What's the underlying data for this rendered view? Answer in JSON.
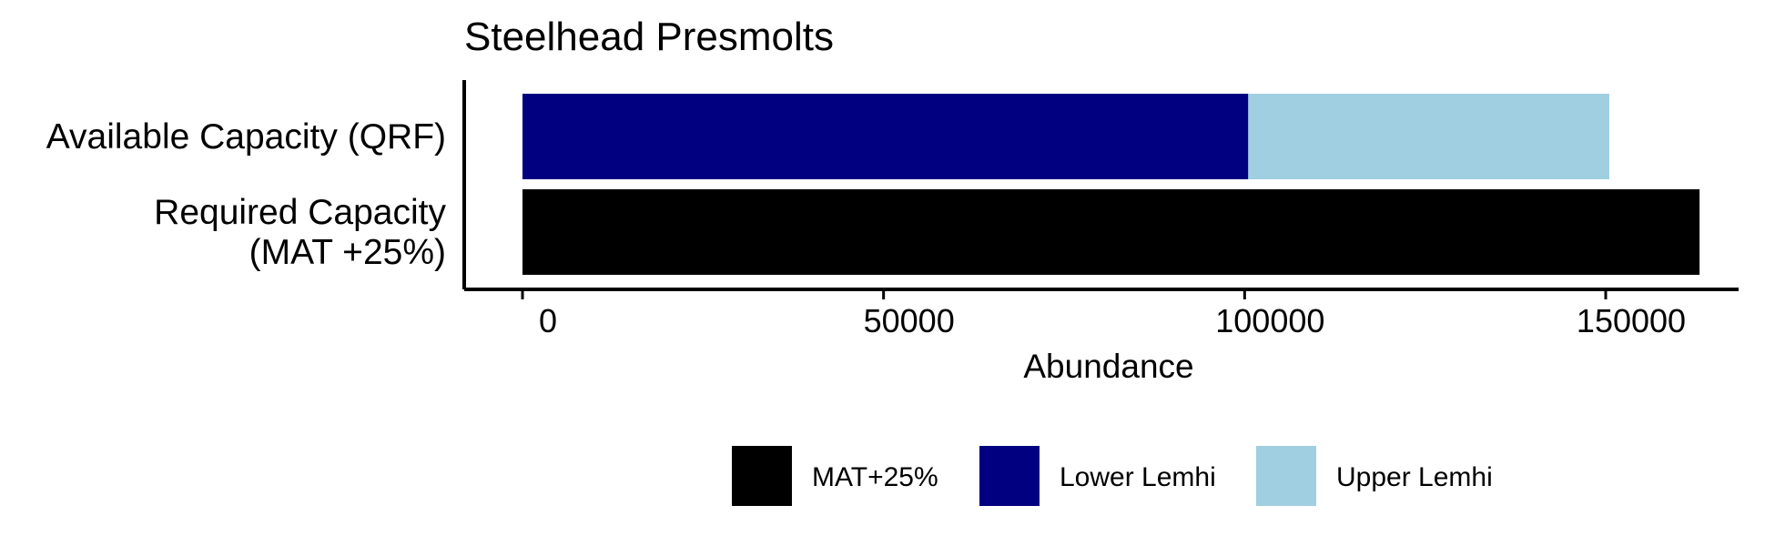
{
  "chart_data": {
    "type": "bar",
    "orientation": "horizontal",
    "stacked": true,
    "title": "Steelhead Presmolts",
    "xlabel": "Abundance",
    "ylabel": "",
    "xlim": [
      -8000,
      170000
    ],
    "x_ticks": [
      0,
      50000,
      100000,
      150000
    ],
    "x_tick_labels": [
      "0",
      "50000",
      "100000",
      "150000"
    ],
    "categories": [
      {
        "id": "qrf",
        "lines": [
          "Available Capacity (QRF)"
        ]
      },
      {
        "id": "mat",
        "lines": [
          "Required Capacity",
          "(MAT +25%)"
        ]
      }
    ],
    "series": [
      {
        "name": "MAT+25%",
        "color": "#000000",
        "values": [
          0,
          163000
        ]
      },
      {
        "name": "Lower Lemhi",
        "color": "#000080",
        "values": [
          100500,
          0
        ]
      },
      {
        "name": "Upper Lemhi",
        "color": "#9fcfe0",
        "values": [
          50000,
          0
        ]
      }
    ],
    "grid": false,
    "legend": "bottom"
  }
}
